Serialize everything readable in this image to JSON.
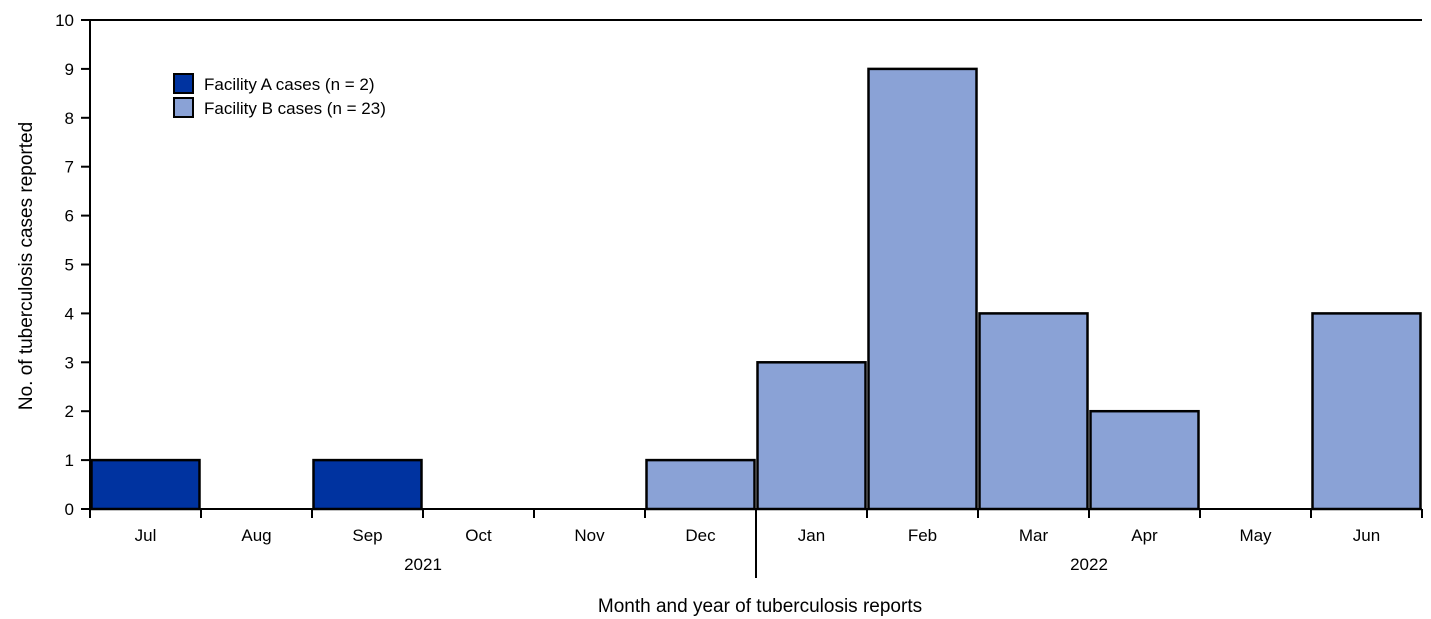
{
  "chart_data": {
    "type": "bar",
    "categories": [
      "Jul",
      "Aug",
      "Sep",
      "Oct",
      "Nov",
      "Dec",
      "Jan",
      "Feb",
      "Mar",
      "Apr",
      "May",
      "Jun"
    ],
    "years": [
      {
        "label": "2021",
        "from": "Jul",
        "to": "Dec"
      },
      {
        "label": "2022",
        "from": "Jan",
        "to": "Jun"
      }
    ],
    "series": [
      {
        "name": "Facility A cases (n = 2)",
        "color": "#0033a0",
        "values": [
          1,
          0,
          1,
          0,
          0,
          0,
          0,
          0,
          0,
          0,
          0,
          0
        ]
      },
      {
        "name": "Facility B cases (n = 23)",
        "color": "#8aa2d6",
        "values": [
          0,
          0,
          0,
          0,
          0,
          1,
          3,
          9,
          4,
          2,
          0,
          4
        ]
      }
    ],
    "title": "",
    "xlabel": "Month and year of tuberculosis reports",
    "ylabel": "No. of tuberculosis cases reported",
    "ylim": [
      0,
      10
    ],
    "yticks": [
      0,
      1,
      2,
      3,
      4,
      5,
      6,
      7,
      8,
      9,
      10
    ],
    "grid": false,
    "legend_position": "top-left"
  }
}
